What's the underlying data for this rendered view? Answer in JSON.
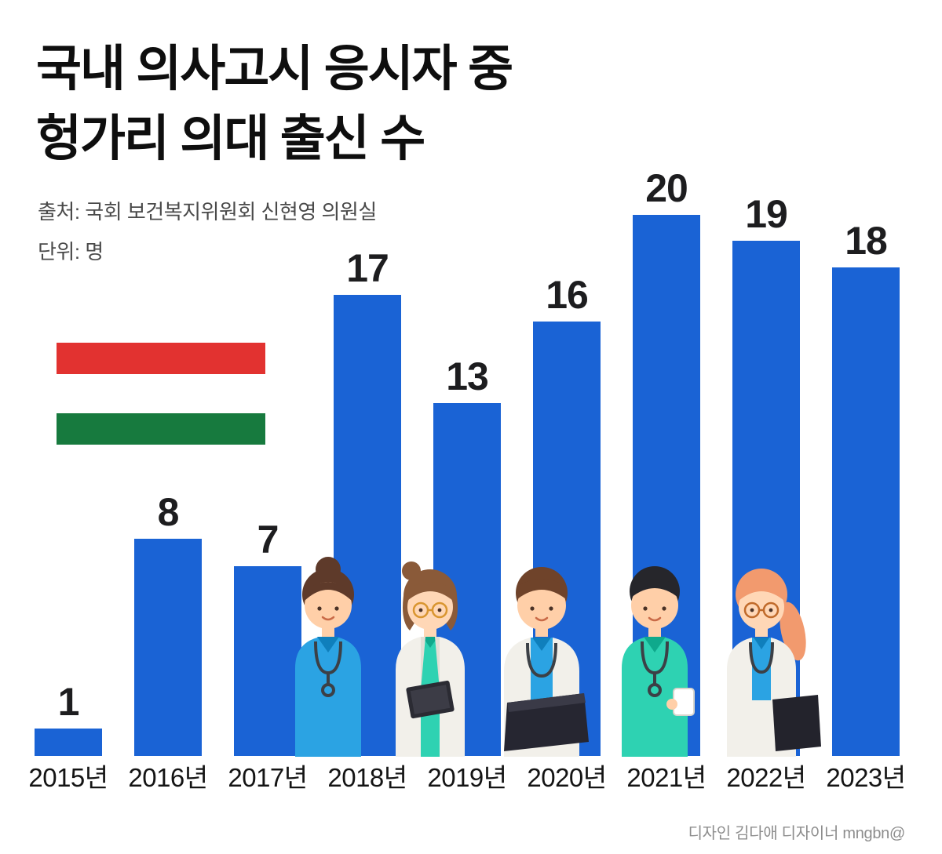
{
  "title": {
    "line1": "국내 의사고시 응시자 중",
    "line2": "헝가리 의대 출신 수"
  },
  "source": "출처: 국회 보건복지위원회 신현영 의원실",
  "unit": "단위: 명",
  "credit": "디자인 김다애 디자이너 mngbn@",
  "colors": {
    "bar": "#1a63d5",
    "flag_red": "#e23230",
    "flag_green": "#177a3e",
    "title_text": "#0e0e0e",
    "meta_text": "#4a4a4a",
    "background": "#ffffff"
  },
  "chart_data": {
    "type": "bar",
    "title": "국내 의사고시 응시자 중 헝가리 의대 출신 수",
    "categories": [
      "2015년",
      "2016년",
      "2017년",
      "2018년",
      "2019년",
      "2020년",
      "2021년",
      "2022년",
      "2023년"
    ],
    "values": [
      1,
      8,
      7,
      17,
      13,
      16,
      20,
      19,
      18
    ],
    "xlabel": "",
    "ylabel": "명",
    "ylim": [
      0,
      20
    ],
    "grid": false,
    "value_labels": true,
    "bar_color": "#1a63d5",
    "legend": "none"
  }
}
